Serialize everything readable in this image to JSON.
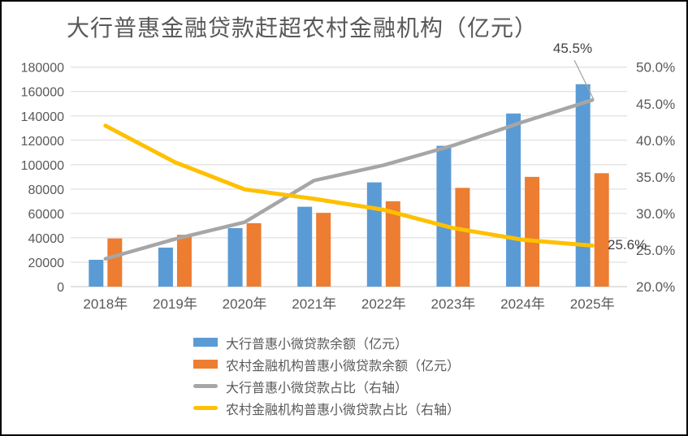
{
  "chart_data": {
    "type": "bar+line-combo",
    "title": "大行普惠金融贷款赶超农村金融机构（亿元）",
    "categories": [
      "2018年",
      "2019年",
      "2020年",
      "2021年",
      "2022年",
      "2023年",
      "2024年",
      "2025年"
    ],
    "series": [
      {
        "name": "大行普惠小微贷款余额（亿元）",
        "type": "bar",
        "axis": "left",
        "color": "#5B9BD5",
        "values": [
          22000,
          32000,
          48000,
          65500,
          85500,
          115500,
          142000,
          166000
        ]
      },
      {
        "name": "农村金融机构普惠小微贷款余额（亿元）",
        "type": "bar",
        "axis": "left",
        "color": "#ED7D31",
        "values": [
          39500,
          42500,
          52000,
          60500,
          70000,
          81000,
          90000,
          93000
        ]
      },
      {
        "name": "大行普惠小微贷款占比（右轴）",
        "type": "line",
        "axis": "right",
        "color": "#A6A6A6",
        "values": [
          23.8,
          26.5,
          28.8,
          34.5,
          36.6,
          39.3,
          42.5,
          45.5
        ]
      },
      {
        "name": "农村金融机构普惠小微贷款占比（右轴）",
        "type": "line",
        "axis": "right",
        "color": "#FFC000",
        "values": [
          42.0,
          37.0,
          33.3,
          32.0,
          30.5,
          28.0,
          26.4,
          25.6
        ]
      }
    ],
    "left_axis": {
      "min": 0,
      "max": 180000,
      "step": 20000,
      "tick_labels": [
        "180000",
        "160000",
        "140000",
        "120000",
        "100000",
        "80000",
        "60000",
        "40000",
        "20000",
        "0"
      ]
    },
    "right_axis": {
      "min": 20,
      "max": 50,
      "step": 5,
      "tick_labels": [
        "50.0%",
        "45.0%",
        "40.0%",
        "35.0%",
        "30.0%",
        "25.0%",
        "20.0%"
      ]
    },
    "annotations": [
      {
        "text": "45.5%",
        "target": "gray-line-end"
      },
      {
        "text": "25.6%",
        "target": "yellow-line-end"
      }
    ],
    "legend_position": "bottom",
    "grid": "horizontal",
    "grid_color": "#D9D9D9",
    "text_color": "#595959"
  }
}
